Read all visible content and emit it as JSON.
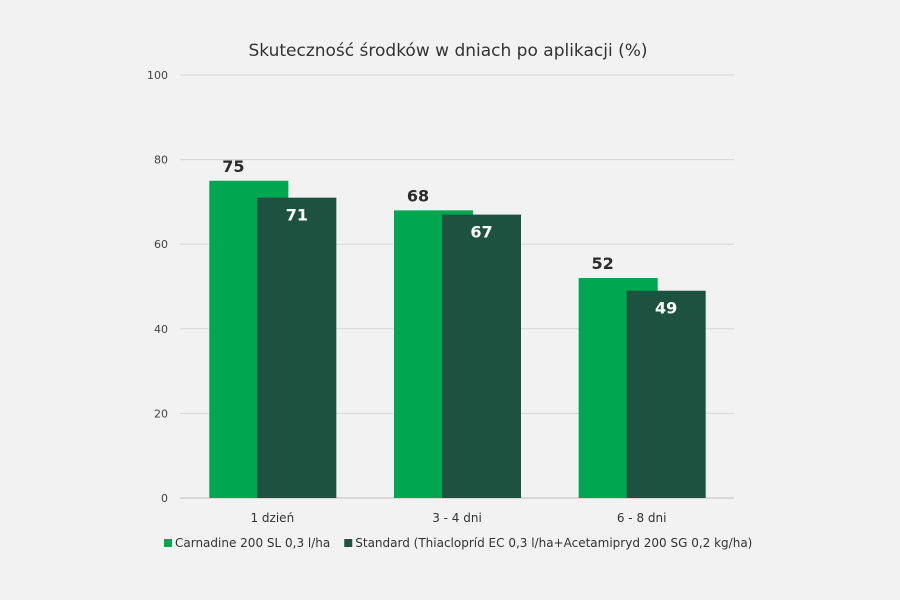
{
  "chart_data": {
    "type": "bar",
    "title": "Skuteczność środków w dniach po aplikacji (%)",
    "xlabel": "",
    "ylabel": "",
    "ylim": [
      0,
      100
    ],
    "yticks": [
      0,
      20,
      40,
      60,
      80,
      100
    ],
    "grid": true,
    "legend_position": "bottom",
    "categories": [
      "1 dzień",
      "3 - 4 dni",
      "6 - 8 dni"
    ],
    "series": [
      {
        "name": "Carnadine 200 SL 0,3 l/ha",
        "values": [
          75,
          68,
          52
        ],
        "color": "#00a650",
        "label_color": "#2b2b2b"
      },
      {
        "name": "Standard (Thiaclopríd EC 0,3 l/ha+Acetamipryd 200 SG 0,2 kg/ha)",
        "values": [
          71,
          67,
          49
        ],
        "color": "#1d5240",
        "label_color": "#ffffff"
      }
    ]
  }
}
